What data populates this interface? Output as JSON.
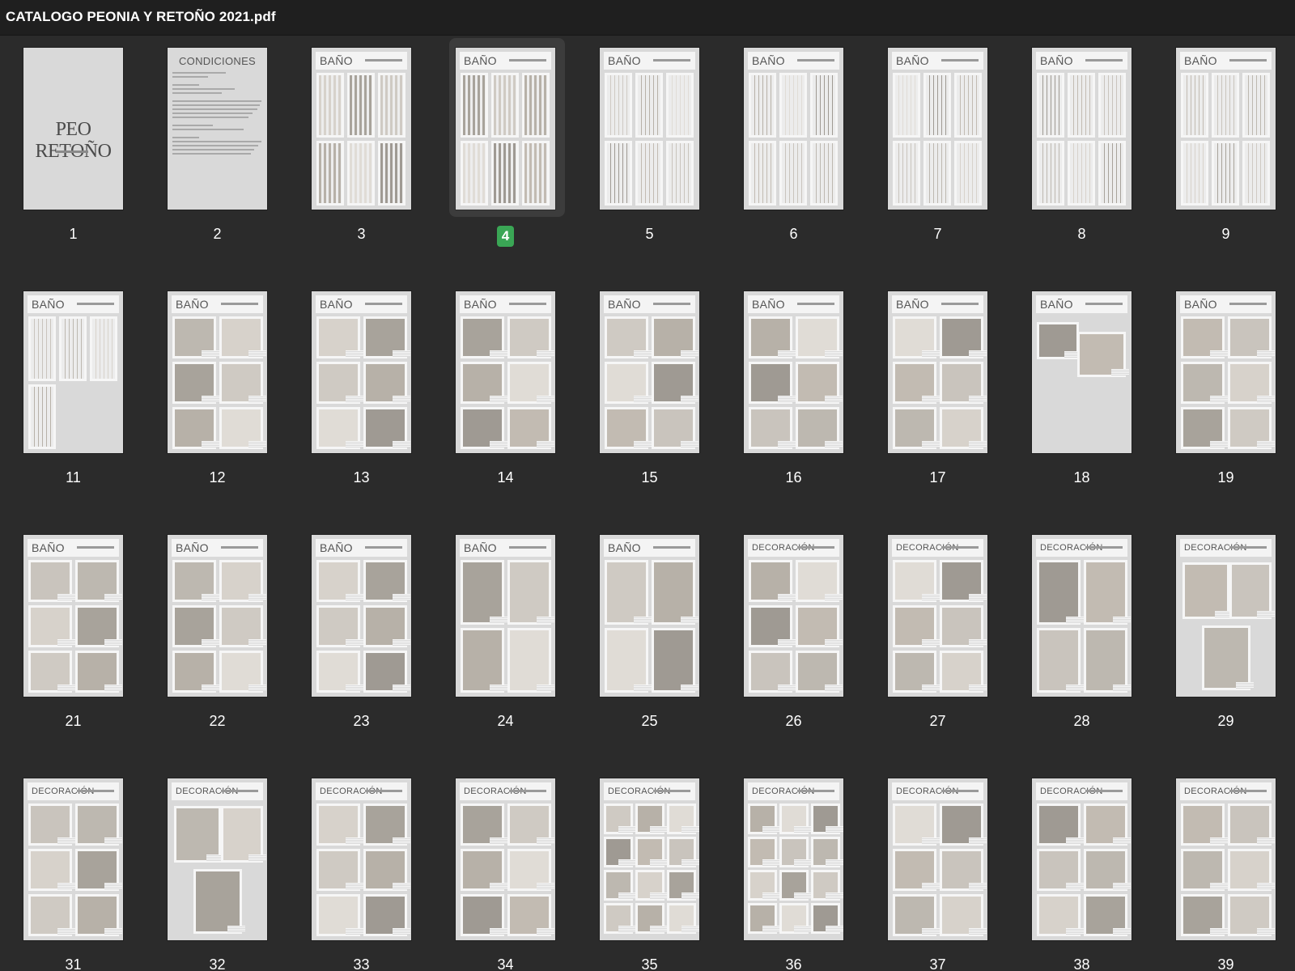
{
  "window": {
    "title": "CATALOGO PEONIA Y RETOÑO 2021.pdf"
  },
  "selected_page": "4",
  "cover": {
    "logo": "PEO RETOÑO"
  },
  "conditions": {
    "title": "CONDICIONES"
  },
  "pages": [
    {
      "num": "1",
      "kind": "cover"
    },
    {
      "num": "2",
      "kind": "conditions"
    },
    {
      "num": "3",
      "kind": "content",
      "section": "BAÑO",
      "style": "curtains-pattern"
    },
    {
      "num": "4",
      "kind": "content",
      "section": "BAÑO",
      "style": "curtains-pattern"
    },
    {
      "num": "5",
      "kind": "content",
      "section": "BAÑO",
      "style": "curtains"
    },
    {
      "num": "6",
      "kind": "content",
      "section": "BAÑO",
      "style": "curtains"
    },
    {
      "num": "7",
      "kind": "content",
      "section": "BAÑO",
      "style": "curtains"
    },
    {
      "num": "8",
      "kind": "content",
      "section": "BAÑO",
      "style": "curtains"
    },
    {
      "num": "9",
      "kind": "content",
      "section": "BAÑO",
      "style": "curtains"
    },
    {
      "num": "11",
      "kind": "content",
      "section": "BAÑO",
      "style": "curtains-partial"
    },
    {
      "num": "12",
      "kind": "content",
      "section": "BAÑO",
      "style": "six-grid"
    },
    {
      "num": "13",
      "kind": "content",
      "section": "BAÑO",
      "style": "six-grid"
    },
    {
      "num": "14",
      "kind": "content",
      "section": "BAÑO",
      "style": "six-grid"
    },
    {
      "num": "15",
      "kind": "content",
      "section": "BAÑO",
      "style": "six-grid"
    },
    {
      "num": "16",
      "kind": "content",
      "section": "BAÑO",
      "style": "six-grid"
    },
    {
      "num": "17",
      "kind": "content",
      "section": "BAÑO",
      "style": "six-grid"
    },
    {
      "num": "18",
      "kind": "content",
      "section": "BAÑO",
      "style": "two-items"
    },
    {
      "num": "19",
      "kind": "content",
      "section": "BAÑO",
      "style": "six-grid"
    },
    {
      "num": "21",
      "kind": "content",
      "section": "BAÑO",
      "style": "six-grid"
    },
    {
      "num": "22",
      "kind": "content",
      "section": "BAÑO",
      "style": "six-grid"
    },
    {
      "num": "23",
      "kind": "content",
      "section": "BAÑO",
      "style": "six-grid"
    },
    {
      "num": "24",
      "kind": "content",
      "section": "BAÑO",
      "style": "four-grid"
    },
    {
      "num": "25",
      "kind": "content",
      "section": "BAÑO",
      "style": "four-grid"
    },
    {
      "num": "26",
      "kind": "content",
      "section": "DECORACIÓN",
      "style": "six-grid"
    },
    {
      "num": "27",
      "kind": "content",
      "section": "DECORACIÓN",
      "style": "six-grid"
    },
    {
      "num": "28",
      "kind": "content",
      "section": "DECORACIÓN",
      "style": "four-grid"
    },
    {
      "num": "29",
      "kind": "content",
      "section": "DECORACIÓN",
      "style": "three-items"
    },
    {
      "num": "31",
      "kind": "content",
      "section": "DECORACIÓN",
      "style": "six-grid"
    },
    {
      "num": "32",
      "kind": "content",
      "section": "DECORACIÓN",
      "style": "three-items"
    },
    {
      "num": "33",
      "kind": "content",
      "section": "DECORACIÓN",
      "style": "six-grid"
    },
    {
      "num": "34",
      "kind": "content",
      "section": "DECORACIÓN",
      "style": "six-grid"
    },
    {
      "num": "35",
      "kind": "content",
      "section": "DECORACIÓN",
      "style": "nine-grid"
    },
    {
      "num": "36",
      "kind": "content",
      "section": "DECORACIÓN",
      "style": "nine-grid"
    },
    {
      "num": "37",
      "kind": "content",
      "section": "DECORACIÓN",
      "style": "six-grid"
    },
    {
      "num": "38",
      "kind": "content",
      "section": "DECORACIÓN",
      "style": "six-grid"
    },
    {
      "num": "39",
      "kind": "content",
      "section": "DECORACIÓN",
      "style": "six-grid"
    }
  ],
  "colors": {
    "background": "#2b2b2b",
    "titlebar": "#1f1f1f",
    "selected_badge": "#3aa655",
    "page": "#d9d9d9"
  }
}
